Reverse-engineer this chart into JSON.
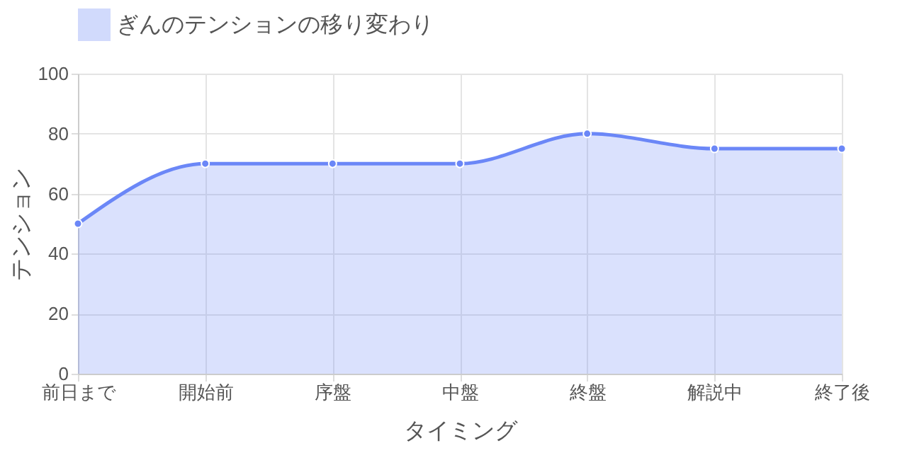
{
  "chart_data": {
    "type": "area",
    "xlabel": "タイミング",
    "ylabel": "テンション",
    "categories": [
      "前日まで",
      "開始前",
      "序盤",
      "中盤",
      "終盤",
      "解説中",
      "終了後"
    ],
    "series": [
      {
        "name": "ぎんのテンションの移り変わり",
        "color": "#6b87f7",
        "values": [
          50,
          70,
          70,
          70,
          80,
          75,
          75
        ]
      }
    ],
    "ylim": [
      0,
      100
    ],
    "yticks": [
      0,
      20,
      40,
      60,
      80,
      100
    ],
    "grid": true,
    "legend": "top",
    "marker": "circle"
  }
}
